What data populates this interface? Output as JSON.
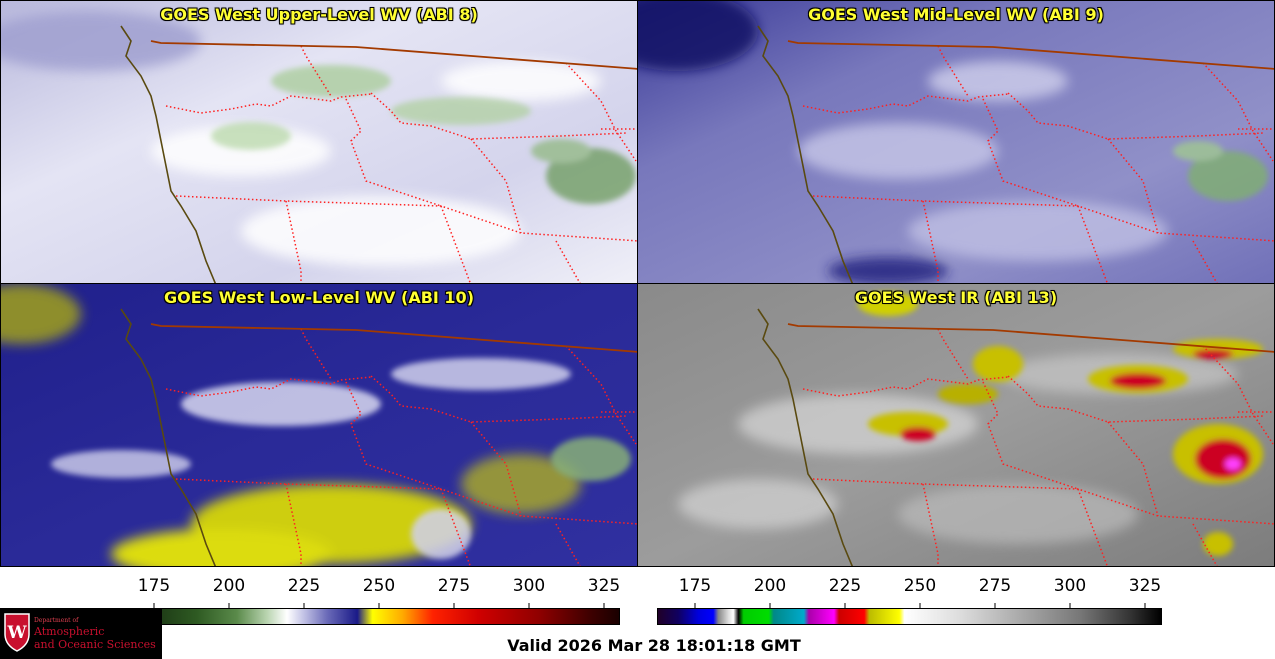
{
  "panels": [
    {
      "title": "GOES West Upper-Level WV (ABI 8)"
    },
    {
      "title": "GOES West Mid-Level WV (ABI 9)"
    },
    {
      "title": "GOES West Low-Level WV (ABI 10)"
    },
    {
      "title": "GOES West IR (ABI 13)"
    }
  ],
  "colorbars": {
    "left": {
      "ticks": [
        "175",
        "200",
        "225",
        "250",
        "275",
        "300",
        "325"
      ]
    },
    "right": {
      "ticks": [
        "175",
        "200",
        "225",
        "250",
        "275",
        "300",
        "325"
      ]
    }
  },
  "logo": {
    "line1": "Department of",
    "line2": "Atmospheric",
    "line3": "and Oceanic Sciences",
    "emblem_letter": "W"
  },
  "footer": {
    "valid": "Valid 2026 Mar 28 18:01:18 GMT"
  },
  "colors": {
    "title_text": "#ffff33",
    "state_border": "#ff2020",
    "coastline": "#5a4a10",
    "country_border": "#a33a00",
    "logo_red": "#c8102e"
  }
}
